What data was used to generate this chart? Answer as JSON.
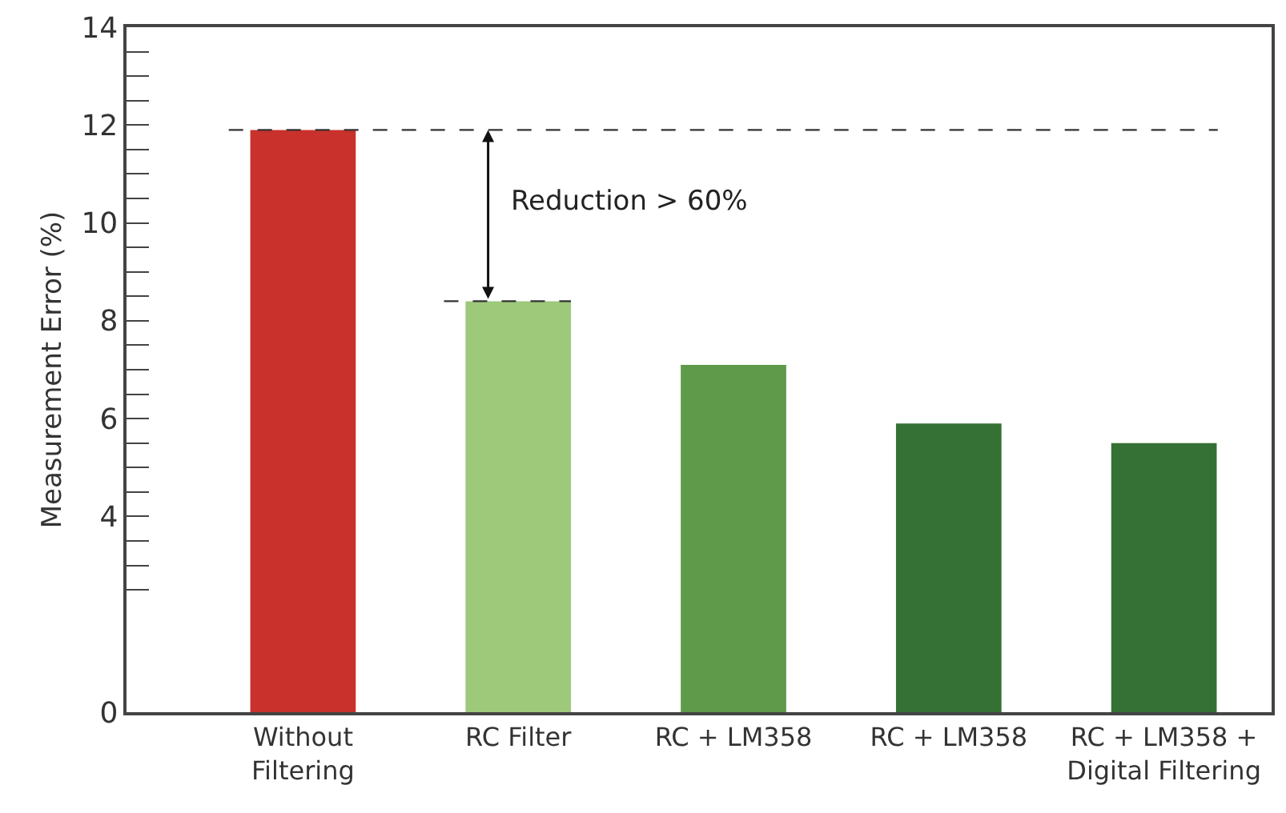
{
  "chart_data": {
    "type": "bar",
    "ylabel": "Measurement Error (%)",
    "categories": [
      "Without\nFiltering",
      "RC Filter",
      "RC + LM358",
      "RC + LM358",
      "RC + LM358 +\nDigital Filtering"
    ],
    "values": [
      11.9,
      8.4,
      7.1,
      5.9,
      5.5
    ],
    "colors": [
      "#c9312c",
      "#9ec97b",
      "#5e9a49",
      "#357035",
      "#357035"
    ],
    "ylim": [
      0,
      14
    ],
    "yticks": [
      0,
      {
        "value": 2.5,
        "label": null
      },
      {
        "value": 3,
        "label": null
      },
      {
        "value": 3.5,
        "label": null
      },
      4,
      {
        "value": 4.5,
        "label": null
      },
      {
        "value": 5,
        "label": null
      },
      {
        "value": 5.5,
        "label": null
      },
      6,
      {
        "value": 6.5,
        "label": null
      },
      {
        "value": 7,
        "label": null
      },
      {
        "value": 7.5,
        "label": null
      },
      8,
      {
        "value": 8.5,
        "label": null
      },
      {
        "value": 9,
        "label": null
      },
      {
        "value": 9.5,
        "label": null
      },
      10,
      {
        "value": 10.5,
        "label": null
      },
      {
        "value": 11,
        "label": null
      },
      {
        "value": 11.5,
        "label": null
      },
      12,
      {
        "value": 12.5,
        "label": null
      },
      {
        "value": 13,
        "label": null
      },
      {
        "value": 13.5,
        "label": null
      },
      14
    ],
    "ref_lines": [
      {
        "axis": "y",
        "value": 11.9,
        "line_style": "dashed",
        "color": "#333333"
      },
      {
        "axis": "y",
        "value": 8.4,
        "line_style": "dashed",
        "color": "#333333"
      }
    ],
    "annotations": [
      "Reduction > 60%"
    ]
  }
}
